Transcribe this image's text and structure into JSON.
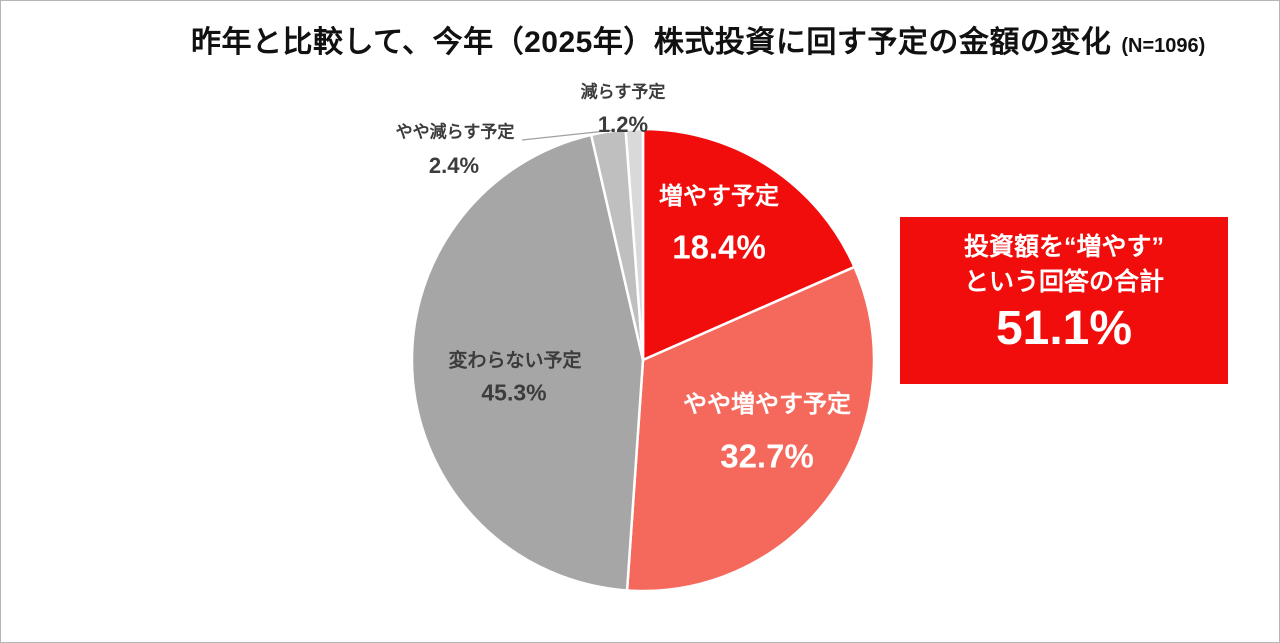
{
  "page": {
    "background": "#FFFFFF",
    "border_color": "#B5B5B5"
  },
  "header": {
    "title": "昨年と比較して、今年（2025年）株式投資に回す予定の金額の変化",
    "sample_note": "(N=1096)"
  },
  "chart_data": {
    "type": "pie",
    "title": "昨年と比較して、今年（2025年）株式投資に回す予定の金額の変化",
    "sample_size": "N=1096",
    "direction": "clockwise",
    "start_angle_deg": 0,
    "legend": "none",
    "slices": [
      {
        "label": "増やす予定",
        "value": 18.4,
        "display": "18.4%",
        "color": "#F20D0D",
        "label_color": "#FFFFFF",
        "label_position": "inside"
      },
      {
        "label": "やや増やす予定",
        "value": 32.7,
        "display": "32.7%",
        "color": "#F4695C",
        "label_color": "#FFFFFF",
        "label_position": "inside"
      },
      {
        "label": "変わらない予定",
        "value": 45.3,
        "display": "45.3%",
        "color": "#A6A6A6",
        "label_color": "#3C3C3C",
        "label_position": "inside"
      },
      {
        "label": "やや減らす予定",
        "value": 2.4,
        "display": "2.4%",
        "color": "#BFBFBF",
        "label_color": "#3C3C3C",
        "label_position": "outside"
      },
      {
        "label": "減らす予定",
        "value": 1.2,
        "display": "1.2%",
        "color": "#D9D9D9",
        "label_color": "#3C3C3C",
        "label_position": "outside"
      }
    ]
  },
  "annotation_box": {
    "line1": "投資額を“増やす”",
    "line2": "という回答の合計",
    "value": "51.1%",
    "background": "#F20D0D",
    "text_color": "#FFFFFF"
  }
}
